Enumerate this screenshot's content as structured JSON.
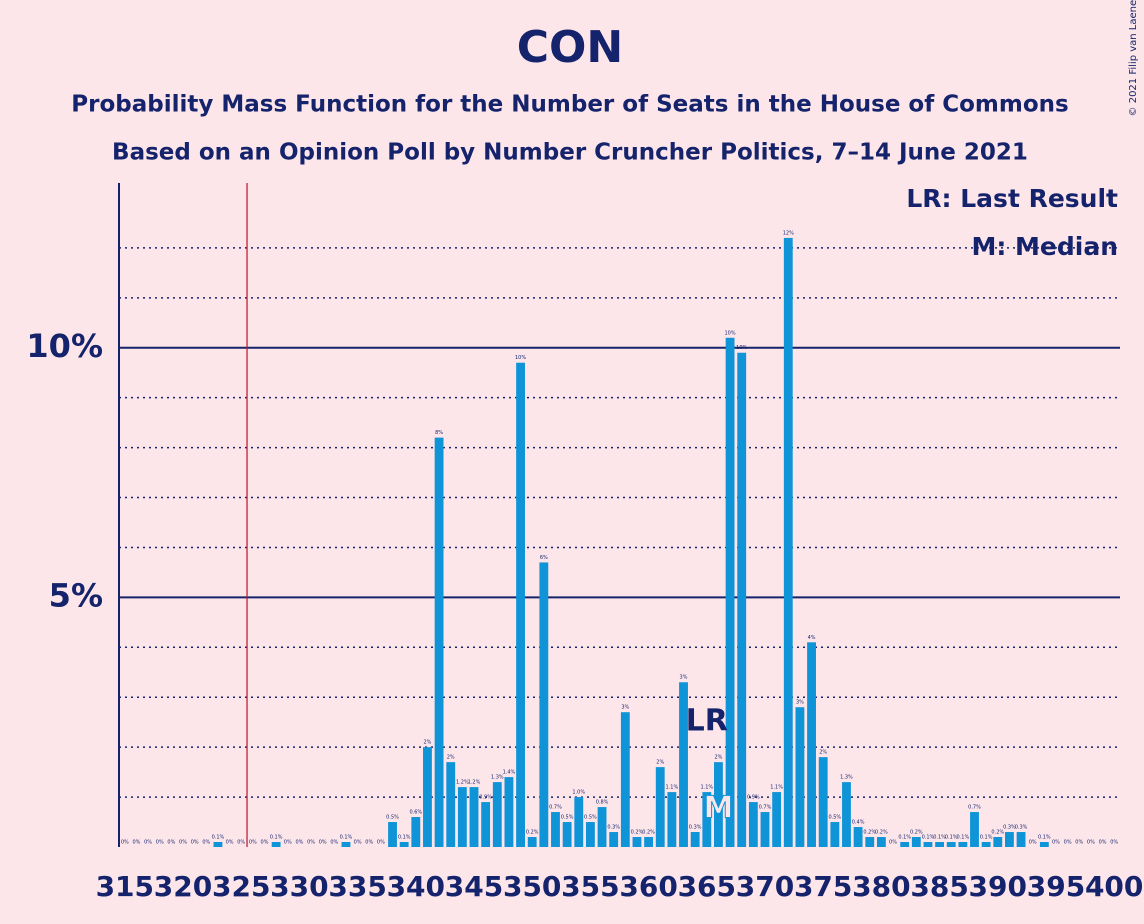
{
  "chart_data": {
    "type": "bar",
    "title": "CON",
    "subtitle": "Probability Mass Function for the Number of Seats in the House of Commons",
    "subtitle2": "Based on an Opinion Poll by Number Cruncher Politics, 7–14 June 2021",
    "copyright": "© 2021 Filip van Laenen",
    "legend": [
      "LR: Last Result",
      "M: Median"
    ],
    "legend_position": "upper right",
    "color": "#0f94d8",
    "x": [
      315,
      316,
      317,
      318,
      319,
      320,
      321,
      322,
      323,
      324,
      325,
      326,
      327,
      328,
      329,
      330,
      331,
      332,
      333,
      334,
      335,
      336,
      337,
      338,
      339,
      340,
      341,
      342,
      343,
      344,
      345,
      346,
      347,
      348,
      349,
      350,
      351,
      352,
      353,
      354,
      355,
      356,
      357,
      358,
      359,
      360,
      361,
      362,
      363,
      364,
      365,
      366,
      367,
      368,
      369,
      370,
      371,
      372,
      373,
      374,
      375,
      376,
      377,
      378,
      379,
      380,
      381,
      382,
      383,
      384,
      385,
      386,
      387,
      388,
      389,
      390,
      391,
      392,
      393,
      394,
      395,
      396,
      397,
      398,
      399,
      400
    ],
    "values": [
      0,
      0,
      0,
      0,
      0,
      0,
      0,
      0,
      0.1,
      0,
      0,
      0,
      0,
      0.1,
      0,
      0,
      0,
      0,
      0,
      0.1,
      0,
      0,
      0,
      0.5,
      0.1,
      0.6,
      2.0,
      8.2,
      1.7,
      1.2,
      1.2,
      0.9,
      1.3,
      1.4,
      9.7,
      0.2,
      5.7,
      0.7,
      0.5,
      1.0,
      0.5,
      0.8,
      0.3,
      2.7,
      0.2,
      0.2,
      1.6,
      1.1,
      3.3,
      0.3,
      1.1,
      1.7,
      10.2,
      9.9,
      0.9,
      0.7,
      1.1,
      12.2,
      2.8,
      4.1,
      1.8,
      0.5,
      1.3,
      0.4,
      0.2,
      0.2,
      0,
      0.1,
      0.2,
      0.1,
      0.1,
      0.1,
      0.1,
      0.7,
      0.1,
      0.2,
      0.3,
      0.3,
      0,
      0.1,
      0,
      0,
      0,
      0,
      0,
      0
    ],
    "value_labels": [
      "0%",
      "0%",
      "0%",
      "0%",
      "0%",
      "0%",
      "0%",
      "0%",
      "0.1%",
      "0%",
      "0%",
      "0%",
      "0%",
      "0.1%",
      "0%",
      "0%",
      "0%",
      "0%",
      "0%",
      "0.1%",
      "0%",
      "0%",
      "0%",
      "0.5%",
      "0.1%",
      "0.6%",
      "2%",
      "8%",
      "2%",
      "1.2%",
      "1.2%",
      "0.9%",
      "1.3%",
      "1.4%",
      "10%",
      "0.2%",
      "6%",
      "0.7%",
      "0.5%",
      "1.0%",
      "0.5%",
      "0.8%",
      "0.3%",
      "3%",
      "0.2%",
      "0.2%",
      "2%",
      "1.1%",
      "3%",
      "0.3%",
      "1.1%",
      "2%",
      "10%",
      "10%",
      "0.9%",
      "0.7%",
      "1.1%",
      "12%",
      "3%",
      "4%",
      "2%",
      "0.5%",
      "1.3%",
      "0.4%",
      "0.2%",
      "0.2%",
      "0%",
      "0.1%",
      "0.2%",
      "0.1%",
      "0.1%",
      "0.1%",
      "0.1%",
      "0.7%",
      "0.1%",
      "0.2%",
      "0.3%",
      "0.3%",
      "0%",
      "0.1%",
      "0%",
      "0%",
      "0%",
      "0%",
      "0%",
      "0%"
    ],
    "xlim": [
      314.5,
      400.5
    ],
    "xticks": [
      315,
      320,
      325,
      330,
      335,
      340,
      345,
      350,
      355,
      360,
      365,
      370,
      375,
      380,
      385,
      390,
      395,
      400
    ],
    "ylim": [
      0,
      13.3
    ],
    "yticks": [
      {
        "value": 5,
        "label": "5%"
      },
      {
        "value": 10,
        "label": "10%"
      }
    ],
    "minor_yticks": [
      1,
      2,
      3,
      4,
      6,
      7,
      8,
      9,
      11,
      12
    ],
    "grid": true,
    "majority_line": 325.5,
    "majority_color": "#c0102a",
    "annotations": [
      {
        "text": "LR",
        "x": 365
      },
      {
        "text": "M",
        "x": 366
      }
    ]
  }
}
